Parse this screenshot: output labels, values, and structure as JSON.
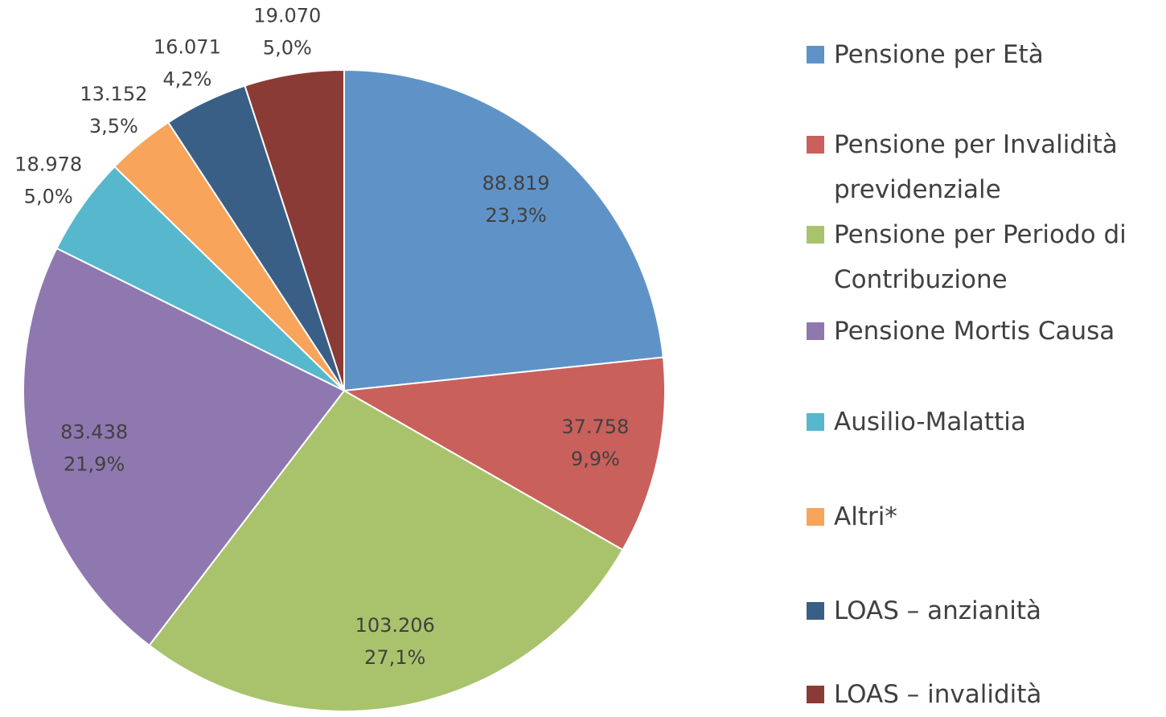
{
  "chart_data": {
    "type": "pie",
    "categories": [
      "Pensione per Età",
      "Pensione per Invalidità previdenziale",
      "Pensione per Periodo di Contribuzione",
      "Pensione Mortis Causa",
      "Ausilio-Malattia",
      "Altri*",
      "LOAS – anzianità",
      "LOAS – invalidità"
    ],
    "values": [
      88819,
      37758,
      103206,
      83438,
      18978,
      13152,
      16071,
      19070
    ],
    "value_labels": [
      "88.819",
      "37.758",
      "103.206",
      "83.438",
      "18.978",
      "13.152",
      "16.071",
      "19.070"
    ],
    "percents": [
      23.3,
      9.9,
      27.1,
      21.9,
      5.0,
      3.5,
      4.2,
      5.0
    ],
    "percent_labels": [
      "23,3%",
      "9,9%",
      "27,1%",
      "21,9%",
      "5,0%",
      "3,5%",
      "4,2%",
      "5,0%"
    ],
    "colors": [
      "#5f93c8",
      "#c9605c",
      "#a9c36d",
      "#8f78b0",
      "#57b7cc",
      "#f8a45a",
      "#3a5f87",
      "#8b3b36"
    ],
    "legend": "right"
  }
}
